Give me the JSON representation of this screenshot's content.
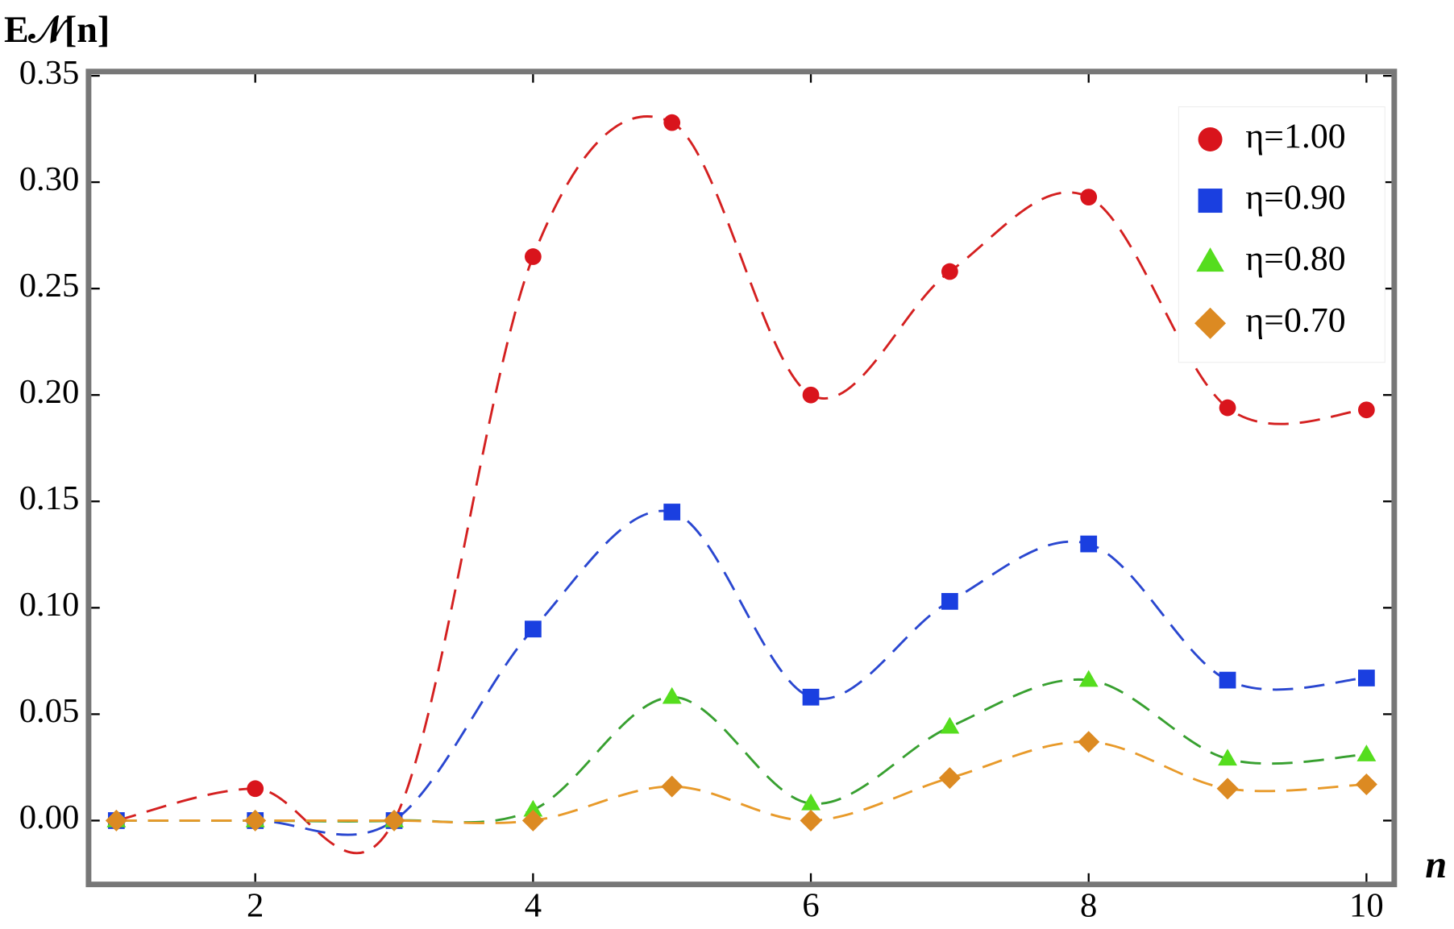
{
  "chart_data": {
    "type": "line",
    "y_label": "E𝒩[n]",
    "x_label": "n",
    "x": [
      1,
      2,
      3,
      4,
      5,
      6,
      7,
      8,
      9,
      10
    ],
    "series": [
      {
        "name": "η=1.00",
        "color": "#d9141c",
        "line_color": "#d42020",
        "marker": "circle",
        "values": [
          0,
          0.015,
          0,
          0.265,
          0.328,
          0.2,
          0.258,
          0.293,
          0.194,
          0.193
        ]
      },
      {
        "name": "η=0.90",
        "color": "#1a3fe0",
        "line_color": "#2a47d0",
        "marker": "square",
        "values": [
          0,
          0,
          0,
          0.09,
          0.145,
          0.058,
          0.103,
          0.13,
          0.066,
          0.067
        ]
      },
      {
        "name": "η=0.80",
        "color": "#55dd1e",
        "line_color": "#38a030",
        "marker": "triangle",
        "values": [
          0,
          0,
          0,
          0.005,
          0.058,
          0.008,
          0.044,
          0.066,
          0.029,
          0.031
        ]
      },
      {
        "name": "η=0.70",
        "color": "#dc8a22",
        "line_color": "#e89a2a",
        "marker": "diamond",
        "values": [
          0,
          0,
          0,
          0,
          0.016,
          0,
          0.02,
          0.037,
          0.015,
          0.017
        ]
      }
    ],
    "xlim": [
      0.8,
      10.2
    ],
    "ylim": [
      -0.03,
      0.352
    ],
    "xticks": [
      2,
      4,
      6,
      8,
      10
    ],
    "yticks": [
      {
        "value": 0,
        "label": "0.00"
      },
      {
        "value": 0.05,
        "label": "0.05"
      },
      {
        "value": 0.1,
        "label": "0.10"
      },
      {
        "value": 0.15,
        "label": "0.15"
      },
      {
        "value": 0.2,
        "label": "0.20"
      },
      {
        "value": 0.25,
        "label": "0.25"
      },
      {
        "value": 0.3,
        "label": "0.30"
      },
      {
        "value": 0.35,
        "label": "0.35"
      }
    ],
    "legend_position": "upper right",
    "line_style": "dashed"
  }
}
